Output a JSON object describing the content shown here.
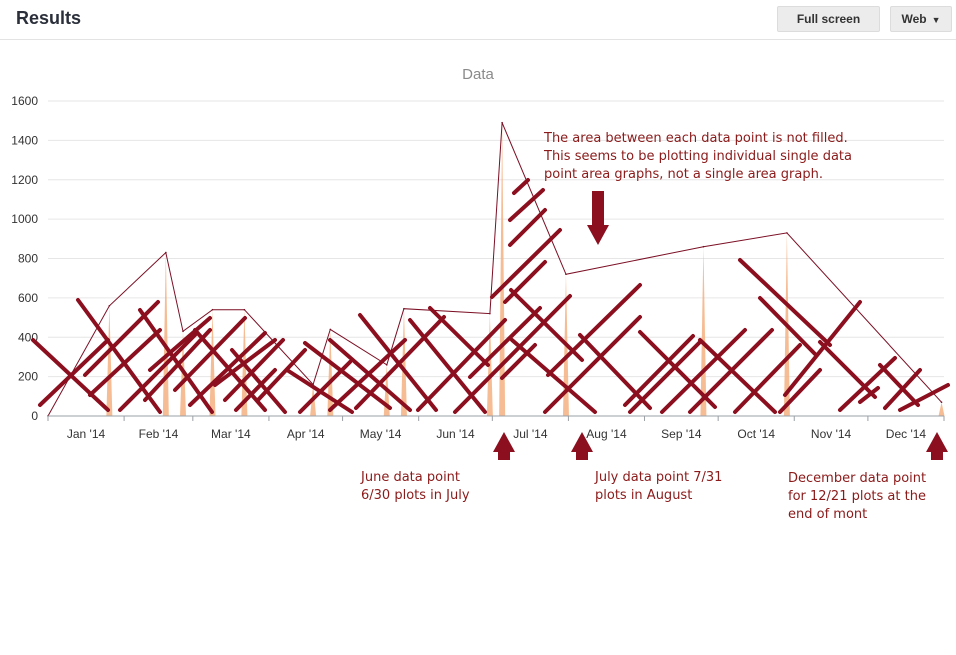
{
  "header": {
    "title": "Results",
    "fullscreen_label": "Full screen",
    "web_label": "Web",
    "caret": "▼"
  },
  "chart_data": {
    "type": "area",
    "title": "Data",
    "xlabel": "",
    "ylabel": "",
    "ylim": [
      0,
      1600
    ],
    "yticks": [
      0,
      200,
      400,
      600,
      800,
      1000,
      1200,
      1400,
      1600
    ],
    "xticks": [
      "Jan '14",
      "Feb '14",
      "Mar '14",
      "Apr '14",
      "May '14",
      "Jun '14",
      "Jul '14",
      "Aug '14",
      "Sep '14",
      "Oct '14",
      "Nov '14",
      "Dec '14"
    ],
    "xlim": [
      "2014-01-01",
      "2015-01-01"
    ],
    "grid": true,
    "fill_color": "#f4b183",
    "line_color": "#7b0f24",
    "series": [
      {
        "points": [
          [
            "2014-01-01",
            0
          ],
          [
            "2014-01-26",
            560
          ],
          [
            "2014-02-18",
            830
          ],
          [
            "2014-02-25",
            430
          ],
          [
            "2014-03-09",
            540
          ],
          [
            "2014-03-22",
            540
          ],
          [
            "2014-04-19",
            160
          ],
          [
            "2014-04-26",
            440
          ],
          [
            "2014-05-19",
            260
          ],
          [
            "2014-05-26",
            545
          ],
          [
            "2014-06-30",
            520
          ],
          [
            "2014-07-05",
            1490
          ],
          [
            "2014-07-31",
            720
          ],
          [
            "2014-09-25",
            860
          ],
          [
            "2014-10-29",
            930
          ],
          [
            "2014-12-31",
            70
          ]
        ]
      }
    ]
  },
  "annotations": {
    "area_note": "The area between each data point is not filled. This seems to be plotting individual single data point area graphs, not a single area graph.",
    "june_note": "June data point 6/30 plots in July",
    "july_note": "July data point 7/31 plots in August",
    "dec_note": "December data point for 12/21 plots at the end of mont"
  }
}
